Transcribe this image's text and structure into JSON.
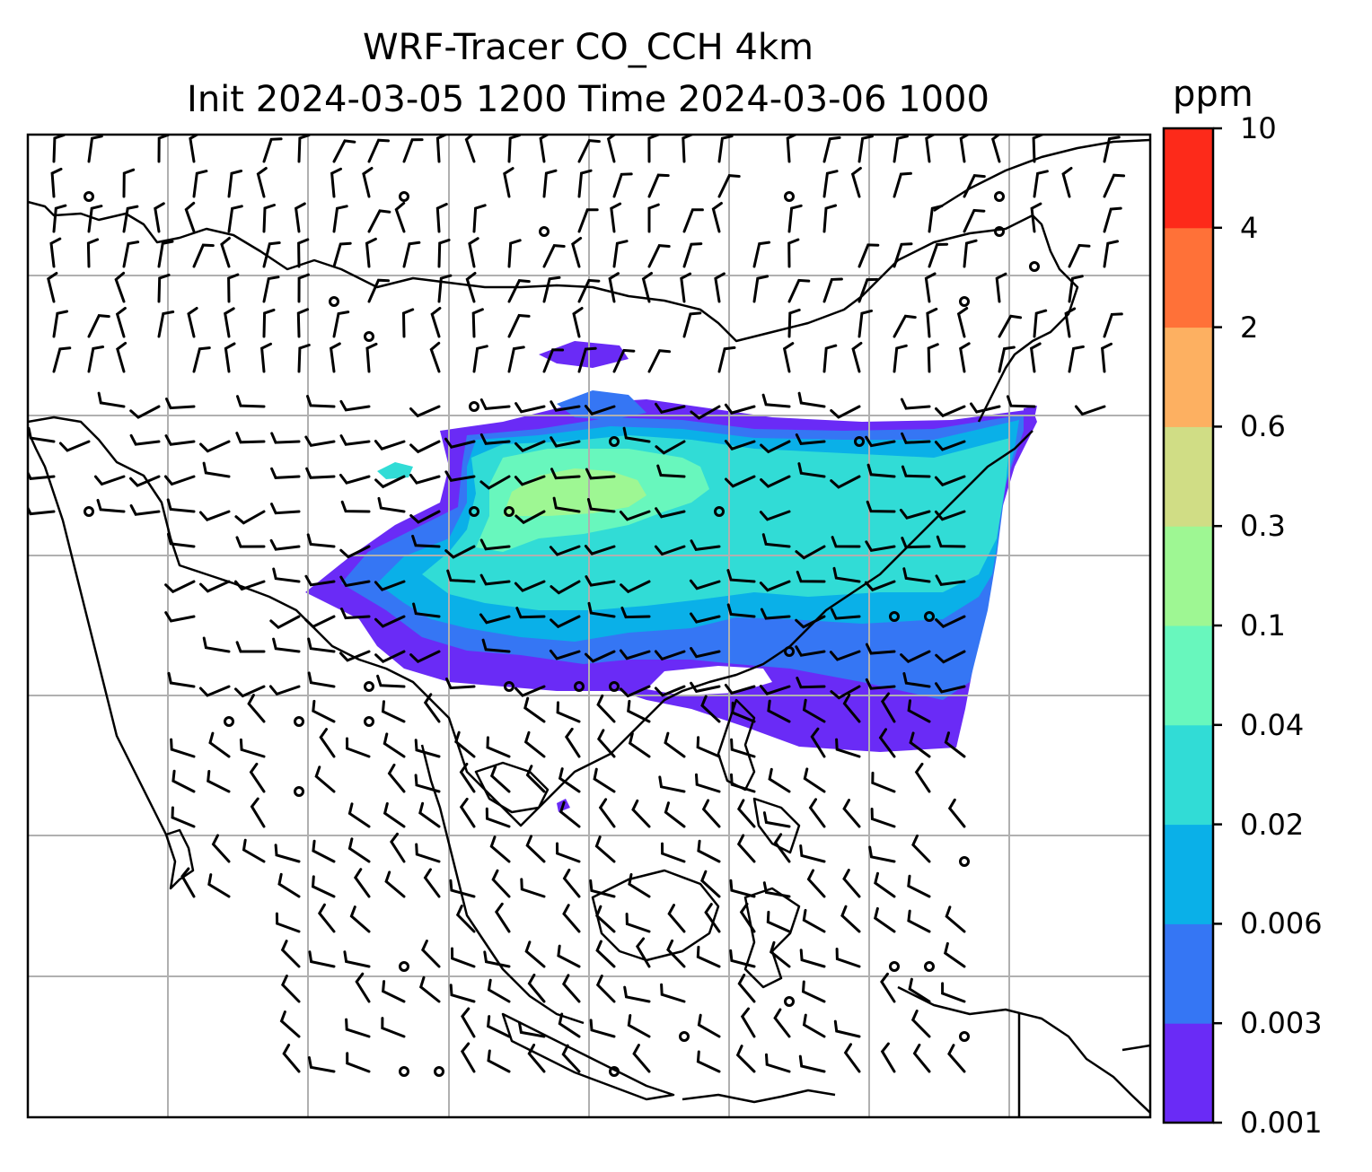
{
  "title_line1": "WRF-Tracer CO_CCH 4km",
  "title_line2": "Init 2024-03-05 1200 Time 2024-03-06 1000",
  "colorbar": {
    "unit": "ppm",
    "levels": [
      "0.001",
      "0.003",
      "0.006",
      "0.02",
      "0.04",
      "0.1",
      "0.3",
      "0.6",
      "2",
      "4",
      "10"
    ],
    "colors": [
      "#6a2bf6",
      "#3576f4",
      "#0ab0e8",
      "#31dcd6",
      "#68f7bd",
      "#9ef793",
      "#d0dd85",
      "#fdb061",
      "#ff7138",
      "#fd2a1a"
    ]
  },
  "map": {
    "gridlines": true,
    "coastlines": true,
    "wind_barbs": true,
    "plume_colors": {
      "lowest": "#6a2bf6",
      "low": "#3576f4",
      "mid": "#0ab0e8",
      "midhigh": "#31dcd6",
      "high": "#68f7bd",
      "higher": "#9ef793"
    }
  }
}
